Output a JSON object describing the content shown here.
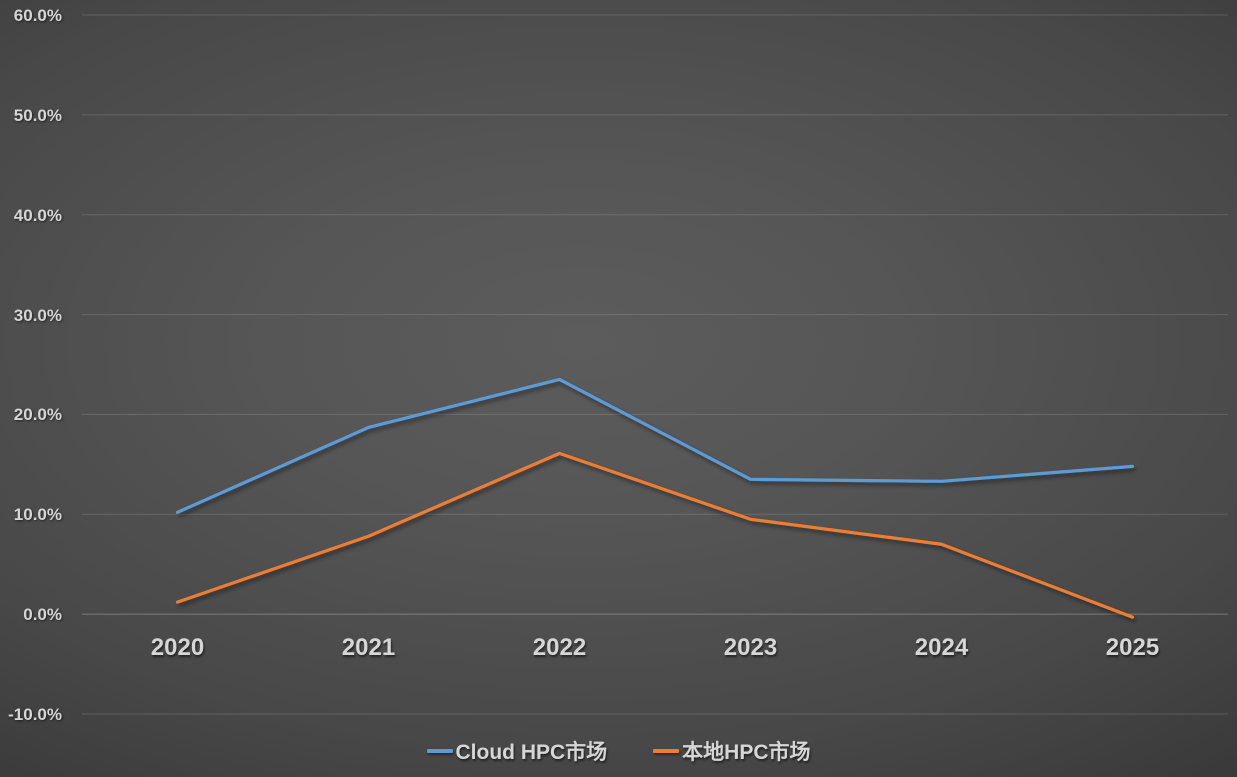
{
  "chart_data": {
    "type": "line",
    "title": "",
    "xlabel": "",
    "ylabel": "",
    "categories": [
      "2020",
      "2021",
      "2022",
      "2023",
      "2024",
      "2025"
    ],
    "series": [
      {
        "name": "Cloud HPC市场",
        "color": "#5B9BD5",
        "values": [
          10.2,
          18.7,
          23.5,
          13.5,
          13.3,
          14.8
        ]
      },
      {
        "name": "本地HPC市场",
        "color": "#ED7D31",
        "values": [
          1.2,
          7.8,
          16.1,
          9.5,
          7.0,
          -0.3
        ]
      }
    ],
    "ylim": [
      -10,
      60
    ],
    "ytick_step": 10,
    "ytick_labels": [
      "60.0%",
      "50.0%",
      "40.0%",
      "30.0%",
      "20.0%",
      "10.0%",
      "0.0%",
      "-10.0%"
    ],
    "ytick_values": [
      60,
      50,
      40,
      30,
      20,
      10,
      0,
      -10
    ],
    "grid": true,
    "legend_position": "bottom",
    "colors": {
      "text": "#d6d6d6",
      "gridline": "rgba(255,255,255,0.14)",
      "zero_axis_line": "rgba(255,255,255,0.28)",
      "background_center": "#5c5c5c",
      "background_edge": "#242424"
    }
  }
}
